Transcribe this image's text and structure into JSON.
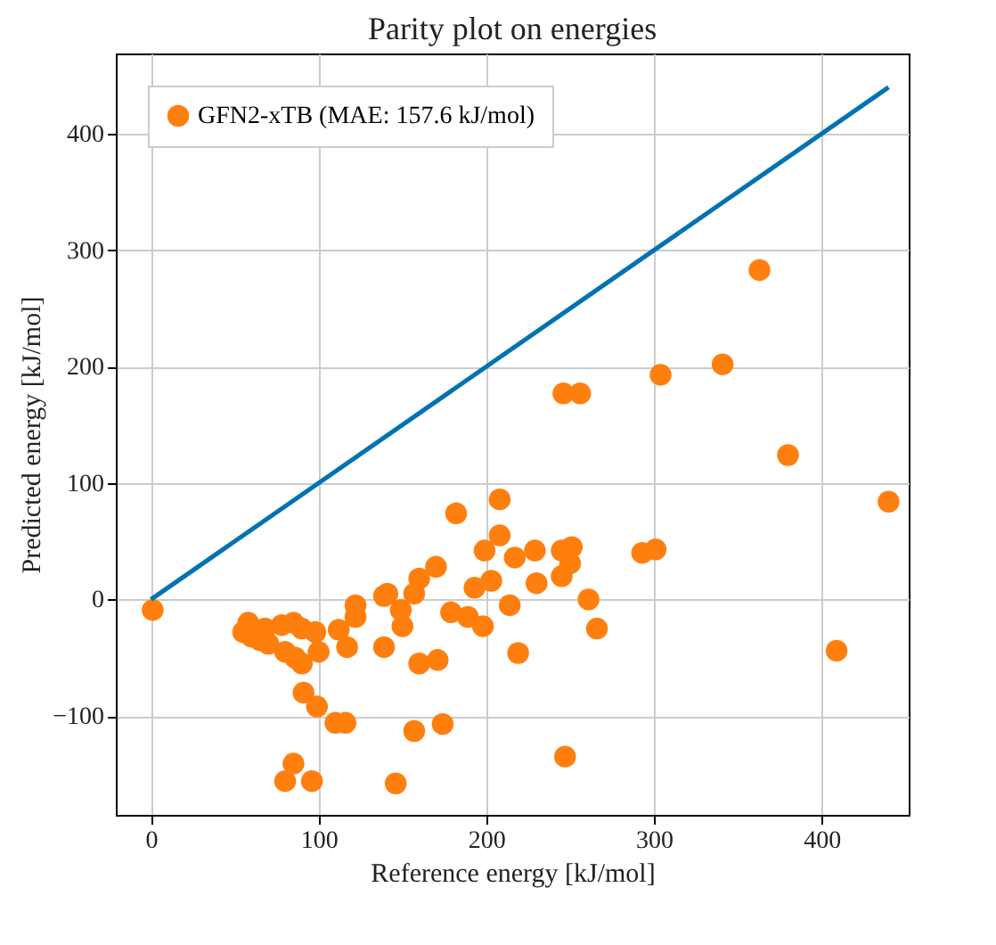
{
  "chart_data": {
    "type": "scatter",
    "title": "Parity plot on energies",
    "xlabel": "Reference energy [kJ/mol]",
    "ylabel": "Predicted energy [kJ/mol]",
    "xlim": [
      -21,
      452
    ],
    "ylim": [
      -185,
      469
    ],
    "xticks": [
      0,
      100,
      200,
      300,
      400
    ],
    "yticks": [
      -100,
      0,
      100,
      200,
      300,
      400
    ],
    "grid": true,
    "legend": "top left",
    "series": [
      {
        "name": "GFN2-xTB (MAE: 157.6 kJ/mol)",
        "marker": "circle",
        "color": "#ff7f0e",
        "x": [
          1,
          55,
          58,
          60,
          65,
          68,
          70,
          78,
          80,
          85,
          86,
          90,
          90,
          98,
          100,
          122,
          122,
          139,
          139,
          117,
          112,
          91,
          99,
          110,
          116,
          85,
          80,
          96,
          146,
          208,
          182,
          208,
          199,
          217,
          229,
          245,
          251,
          250,
          245,
          230,
          170,
          160,
          157,
          141,
          149,
          150,
          193,
          203,
          179,
          189,
          198,
          214,
          261,
          266,
          219,
          160,
          171,
          157,
          174,
          247,
          293,
          301,
          363,
          341,
          304,
          246,
          256,
          380,
          440,
          409
        ],
        "values": [
          -9,
          -28,
          -20,
          -32,
          -35,
          -25,
          -38,
          -22,
          -45,
          -20,
          -50,
          -25,
          -55,
          -28,
          -45,
          -5,
          -15,
          3,
          -41,
          -41,
          -26,
          -80,
          -92,
          -106,
          -106,
          -141,
          -156,
          -156,
          -158,
          86,
          74,
          55,
          42,
          36,
          42,
          42,
          45,
          31,
          20,
          14,
          28,
          18,
          5,
          5,
          -9,
          -23,
          10,
          16,
          -11,
          -15,
          -23,
          -5,
          0,
          -25,
          -46,
          -55,
          -52,
          -113,
          -107,
          -135,
          40,
          43,
          283,
          202,
          193,
          177,
          177,
          124,
          84,
          -44
        ]
      },
      {
        "type": "line",
        "color": "#0173b2",
        "x": [
          0,
          440
        ],
        "values": [
          0,
          440
        ]
      }
    ]
  }
}
